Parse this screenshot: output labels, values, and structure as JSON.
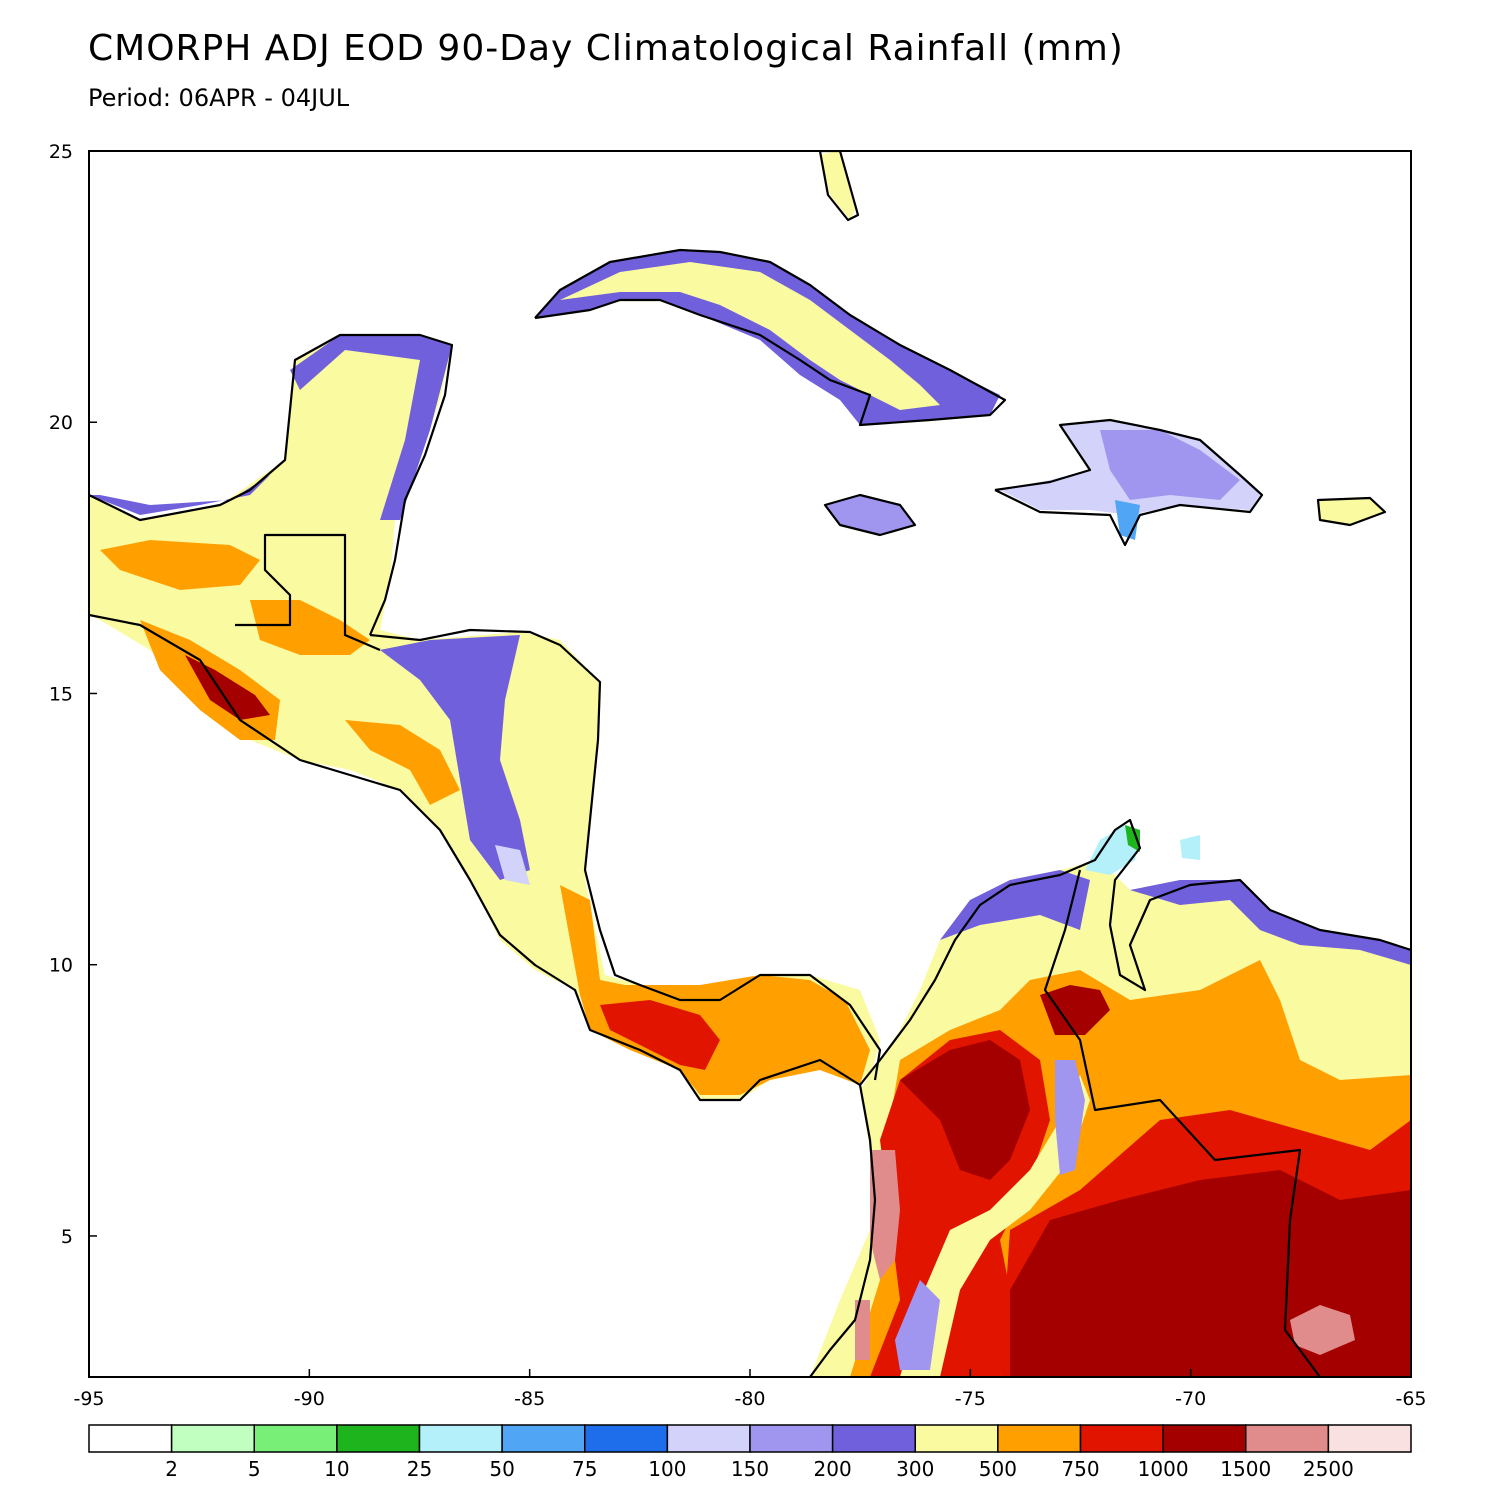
{
  "title": "CMORPH ADJ EOD 90-Day Climatological Rainfall (mm)",
  "subtitle": "Period: 06APR - 04JUL",
  "map": {
    "projection": "lat-lon",
    "lon_range": [
      -95,
      -65
    ],
    "lat_range": [
      2.4,
      25
    ],
    "x_ticks": [
      -95,
      -90,
      -85,
      -80,
      -75,
      -70,
      -65
    ],
    "y_ticks": [
      5,
      10,
      15,
      20,
      25
    ],
    "x_tick_labels": [
      "-95",
      "-90",
      "-85",
      "-80",
      "-75",
      "-70",
      "-65"
    ],
    "y_tick_labels": [
      "5",
      "10",
      "15",
      "20",
      "25"
    ],
    "ocean_color": "#ffffff"
  },
  "legend": {
    "thresholds": [
      "2",
      "5",
      "10",
      "25",
      "50",
      "75",
      "100",
      "150",
      "200",
      "300",
      "500",
      "750",
      "1000",
      "1500",
      "2500"
    ],
    "colors": [
      "#ffffff",
      "#c0ffc0",
      "#78f078",
      "#1eb41e",
      "#b4f0fa",
      "#50a5f5",
      "#1e6eeb",
      "#d2d2fa",
      "#a096f0",
      "#7060dc",
      "#fafaa0",
      "#ffa000",
      "#e11400",
      "#a50000",
      "#e18c8c",
      "#fae1e1"
    ]
  },
  "fields": {
    "yellow": "#fafaa0",
    "orange": "#ffa000",
    "red": "#e11400",
    "darkred": "#a50000",
    "pink": "#e18c8c",
    "purple": "#7060dc",
    "violet": "#a096f0",
    "lavender": "#d2d2fa",
    "cyan": "#b4f0fa",
    "blue": "#50a5f5",
    "deepblue": "#1e6eeb",
    "green": "#1eb41e"
  }
}
